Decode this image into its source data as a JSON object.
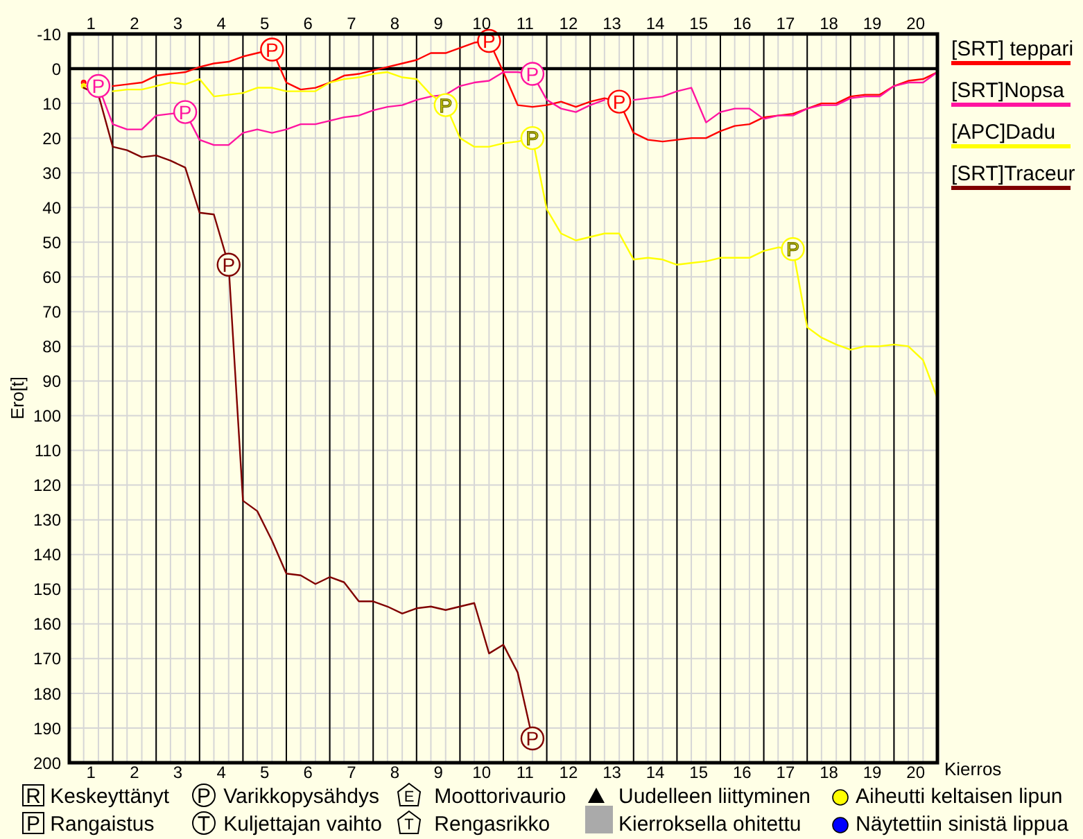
{
  "chart_data": {
    "type": "line",
    "xlabel": "Kierros",
    "ylabel": "Ero[t]",
    "x": [
      0.33,
      0.67,
      1,
      1.33,
      1.67,
      2,
      2.33,
      2.67,
      3,
      3.33,
      3.67,
      4,
      4.33,
      4.67,
      5,
      5.33,
      5.67,
      6,
      6.33,
      6.67,
      7,
      7.33,
      7.67,
      8,
      8.33,
      8.67,
      9,
      9.33,
      9.67,
      10,
      10.33,
      10.67,
      11,
      11.33,
      11.67,
      12,
      12.33,
      12.67,
      13,
      13.33,
      13.67,
      14,
      14.33,
      14.67,
      15,
      15.33,
      15.67,
      16,
      16.33,
      16.67,
      17,
      17.33,
      17.67,
      18,
      18.33,
      18.67,
      19,
      19.33,
      19.67,
      20
    ],
    "xlim": [
      0,
      20
    ],
    "xticks": [
      {
        "value": 0.5,
        "label": "1"
      },
      {
        "value": 1.5,
        "label": "2"
      },
      {
        "value": 2.5,
        "label": "3"
      },
      {
        "value": 3.5,
        "label": "4"
      },
      {
        "value": 4.5,
        "label": "5"
      },
      {
        "value": 5.5,
        "label": "6"
      },
      {
        "value": 6.5,
        "label": "7"
      },
      {
        "value": 7.5,
        "label": "8"
      },
      {
        "value": 8.5,
        "label": "9"
      },
      {
        "value": 9.5,
        "label": "10"
      },
      {
        "value": 10.5,
        "label": "11"
      },
      {
        "value": 11.5,
        "label": "12"
      },
      {
        "value": 12.5,
        "label": "13"
      },
      {
        "value": 13.5,
        "label": "14"
      },
      {
        "value": 14.5,
        "label": "15"
      },
      {
        "value": 15.5,
        "label": "16"
      },
      {
        "value": 16.5,
        "label": "17"
      },
      {
        "value": 17.5,
        "label": "18"
      },
      {
        "value": 18.5,
        "label": "19"
      },
      {
        "value": 19.5,
        "label": "20"
      },
      {
        "value": 1,
        "label": null
      },
      {
        "value": 2,
        "label": null
      },
      {
        "value": 3,
        "label": null
      },
      {
        "value": 4,
        "label": null
      },
      {
        "value": 5,
        "label": null
      },
      {
        "value": 6,
        "label": null
      },
      {
        "value": 7,
        "label": null
      },
      {
        "value": 8,
        "label": null
      },
      {
        "value": 9,
        "label": null
      },
      {
        "value": 10,
        "label": null
      },
      {
        "value": 11,
        "label": null
      },
      {
        "value": 12,
        "label": null
      },
      {
        "value": 13,
        "label": null
      },
      {
        "value": 14,
        "label": null
      },
      {
        "value": 15,
        "label": null
      },
      {
        "value": 16,
        "label": null
      },
      {
        "value": 17,
        "label": null
      },
      {
        "value": 18,
        "label": null
      },
      {
        "value": 19,
        "label": null
      }
    ],
    "x2lim": [
      0,
      20
    ],
    "x2ticks": [
      {
        "value": 0.5,
        "label": "1"
      },
      {
        "value": 1.5,
        "label": "2"
      },
      {
        "value": 2.5,
        "label": "3"
      },
      {
        "value": 3.5,
        "label": "4"
      },
      {
        "value": 4.5,
        "label": "5"
      },
      {
        "value": 5.5,
        "label": "6"
      },
      {
        "value": 6.5,
        "label": "7"
      },
      {
        "value": 7.5,
        "label": "8"
      },
      {
        "value": 8.5,
        "label": "9"
      },
      {
        "value": 9.5,
        "label": "10"
      },
      {
        "value": 10.5,
        "label": "11"
      },
      {
        "value": 11.5,
        "label": "12"
      },
      {
        "value": 12.5,
        "label": "13"
      },
      {
        "value": 13.5,
        "label": "14"
      },
      {
        "value": 14.5,
        "label": "15"
      },
      {
        "value": 15.5,
        "label": "16"
      },
      {
        "value": 16.5,
        "label": "17"
      },
      {
        "value": 17.5,
        "label": "18"
      },
      {
        "value": 18.5,
        "label": "19"
      },
      {
        "value": 19.5,
        "label": "20"
      }
    ],
    "ylim": [
      200,
      -10
    ],
    "yticks": [
      -10,
      0,
      10,
      20,
      30,
      40,
      50,
      60,
      70,
      80,
      90,
      100,
      110,
      120,
      130,
      140,
      150,
      160,
      170,
      180,
      190,
      200
    ],
    "grid": true,
    "legend": "top right",
    "ref_lines": [
      {
        "axis": "y",
        "value": 0,
        "color": "#000000"
      }
    ],
    "series": [
      {
        "name": "[SRT] teppari",
        "color": "#ff0000",
        "values": [
          4,
          null,
          5,
          4.5,
          4,
          2,
          1.5,
          1,
          -0.5,
          -1.5,
          -2,
          -3.5,
          -4.5,
          -5.5,
          4,
          6,
          5.5,
          4,
          2,
          1.5,
          0.5,
          -0.5,
          -1.5,
          -2.5,
          -4.5,
          -4.5,
          -6,
          -7.5,
          -8,
          1,
          10.5,
          11,
          10.5,
          9.5,
          11,
          9.5,
          8.5,
          9.5,
          18.5,
          20.5,
          21,
          20.5,
          20,
          20,
          18,
          16.5,
          16,
          14,
          13.5,
          13,
          11.5,
          10,
          10,
          8,
          7.5,
          7.5,
          5,
          3.5,
          3,
          1
        ]
      },
      {
        "name": "[SRT]Nopsa",
        "color": "#ff14a0",
        "values": [
          5,
          5,
          16,
          17.5,
          17.5,
          13.5,
          13,
          12.5,
          20.5,
          22,
          22,
          18.5,
          17.5,
          18.5,
          17.5,
          16,
          16,
          15,
          14,
          13.5,
          12,
          11,
          10.5,
          9,
          8,
          7.5,
          5,
          4,
          3.5,
          1,
          1,
          1.5,
          9,
          11.5,
          12.5,
          10.5,
          9,
          null,
          9,
          8.5,
          8,
          6.5,
          5.5,
          15.5,
          12.5,
          11.5,
          11.5,
          14.5,
          13.5,
          13.5,
          11.5,
          10.5,
          10.5,
          8.5,
          8,
          8,
          5,
          4,
          4,
          1
        ]
      },
      {
        "name": "[APC]Dadu",
        "color": "#ffff00",
        "values": [
          5,
          null,
          6.5,
          6,
          6,
          5,
          4,
          4.5,
          3,
          8,
          7.5,
          7,
          5.5,
          5.5,
          6.5,
          6.5,
          6.5,
          4,
          3,
          2.5,
          1.5,
          1,
          2.5,
          3,
          7.5,
          10.5,
          20,
          22.5,
          22.5,
          21.5,
          21,
          20,
          40.5,
          47.5,
          49.5,
          48.5,
          47.5,
          47.5,
          55,
          54.5,
          55,
          56.5,
          56,
          55.5,
          54.5,
          54.5,
          54.5,
          52.5,
          51.5,
          52,
          74.5,
          77.5,
          79.5,
          81,
          80,
          80,
          79.5,
          80,
          84,
          95
        ]
      },
      {
        "name": "[SRT]Traceur",
        "color": "#800000",
        "values": [
          5.5,
          7.5,
          22.5,
          23.5,
          25.5,
          25,
          26.5,
          28.5,
          41.5,
          42,
          56.5,
          124.5,
          127.5,
          136,
          145.5,
          146,
          148.5,
          146.5,
          148,
          153.5,
          153.5,
          155,
          157,
          155.5,
          155,
          156,
          155,
          154,
          168.5,
          166,
          174,
          193,
          null,
          null,
          null,
          null,
          null,
          null,
          null,
          null,
          null,
          null,
          null,
          null,
          null,
          null,
          null,
          null,
          null,
          null,
          null,
          null,
          null,
          null,
          null,
          null,
          null,
          null,
          null,
          null
        ]
      }
    ],
    "annotations": [
      {
        "text": "P",
        "x": 0.67,
        "y": 5
      },
      {
        "text": "P",
        "x": 2.67,
        "y": 12.5
      },
      {
        "text": "P",
        "x": 3.67,
        "y": 56.5
      },
      {
        "text": "P",
        "x": 4.67,
        "y": -5.5
      },
      {
        "text": "P",
        "x": 8.67,
        "y": 10.5
      },
      {
        "text": "P",
        "x": 9.67,
        "y": -8
      },
      {
        "text": "P",
        "x": 10.67,
        "y": 1.5
      },
      {
        "text": "P",
        "x": 10.67,
        "y": 20
      },
      {
        "text": "P",
        "x": 10.67,
        "y": 193
      },
      {
        "text": "P",
        "x": 12.67,
        "y": 9.5
      },
      {
        "text": "P",
        "x": 16.67,
        "y": 52
      },
      "R Keskeyttänyt",
      "P Varikkopysähdys",
      "E Moottorivaurio",
      "Uudelleen liittyminen",
      "Aiheutti keltaisen lipun",
      "P Rangaistus",
      "T Kuljettajan vaihto",
      "T Rengasrikko",
      "Kierroksella ohitettu",
      "Näytettiin sinistä lippua"
    ]
  }
}
